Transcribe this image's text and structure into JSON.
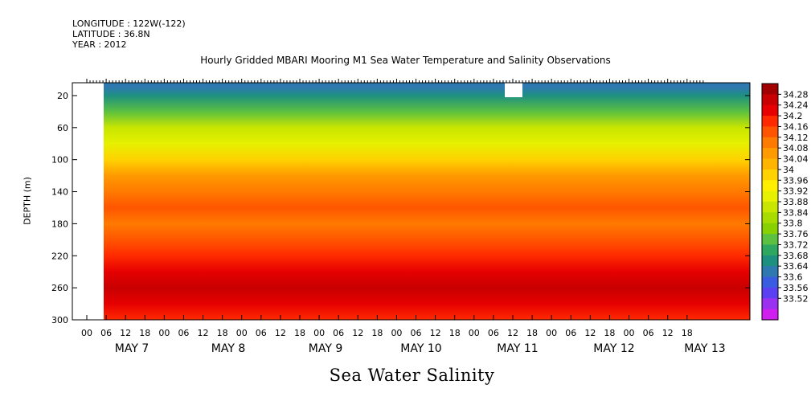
{
  "header": {
    "longitude": "LONGITUDE : 122W(-122)",
    "latitude": "LATITUDE : 36.8N",
    "year": "YEAR : 2012"
  },
  "chart_data": {
    "type": "heatmap",
    "title": "Hourly Gridded MBARI Mooring M1 Sea Water Temperature and Salinity Observations",
    "xlabel": "Sea Water Salinity",
    "ylabel": "DEPTH (m)",
    "ylim": [
      300,
      0
    ],
    "y_ticks": [
      "20",
      "60",
      "100",
      "140",
      "180",
      "220",
      "260",
      "300"
    ],
    "x_hour_labels": [
      "00",
      "06",
      "12",
      "18",
      "00",
      "06",
      "12",
      "18",
      "00",
      "06",
      "12",
      "18",
      "00",
      "06",
      "12",
      "18",
      "00",
      "06",
      "12",
      "18",
      "00",
      "06",
      "12",
      "18",
      "00",
      "06",
      "12",
      "18",
      "00",
      "06",
      "12",
      "18"
    ],
    "x_day_labels": [
      "MAY  7",
      "MAY  8",
      "MAY  9",
      "MAY 10",
      "MAY 11",
      "MAY 12",
      "MAY 13"
    ],
    "colorbar_levels": [
      "34.28",
      "34.24",
      "34.2",
      "34.16",
      "34.12",
      "34.08",
      "34.04",
      "34",
      "33.96",
      "33.92",
      "33.88",
      "33.84",
      "33.8",
      "33.76",
      "33.72",
      "33.68",
      "33.64",
      "33.6",
      "33.56",
      "33.52"
    ],
    "colorbar_colors": [
      "#a00000",
      "#c80000",
      "#e60000",
      "#ff2a00",
      "#ff5500",
      "#ff7a00",
      "#ff9a00",
      "#ffb400",
      "#ffd200",
      "#ffee00",
      "#e6f000",
      "#c8e600",
      "#a8dc00",
      "#88d000",
      "#5cc040",
      "#2ea860",
      "#1e9080",
      "#2e7ab0",
      "#3a5ce0",
      "#5a40f0",
      "#9a30f0",
      "#d020f0"
    ],
    "depth_profile": [
      {
        "depth": 10,
        "salinity": 33.6
      },
      {
        "depth": 20,
        "salinity": 33.65
      },
      {
        "depth": 40,
        "salinity": 33.74
      },
      {
        "depth": 60,
        "salinity": 33.84
      },
      {
        "depth": 80,
        "salinity": 33.9
      },
      {
        "depth": 100,
        "salinity": 33.98
      },
      {
        "depth": 120,
        "salinity": 34.02
      },
      {
        "depth": 140,
        "salinity": 34.1
      },
      {
        "depth": 160,
        "salinity": 34.13
      },
      {
        "depth": 180,
        "salinity": 34.1
      },
      {
        "depth": 200,
        "salinity": 34.12
      },
      {
        "depth": 220,
        "salinity": 34.16
      },
      {
        "depth": 240,
        "salinity": 34.22
      },
      {
        "depth": 260,
        "salinity": 34.26
      },
      {
        "depth": 280,
        "salinity": 34.2
      },
      {
        "depth": 300,
        "salinity": 34.16
      }
    ],
    "missing_data_color": "#ffffff",
    "grid": false
  }
}
